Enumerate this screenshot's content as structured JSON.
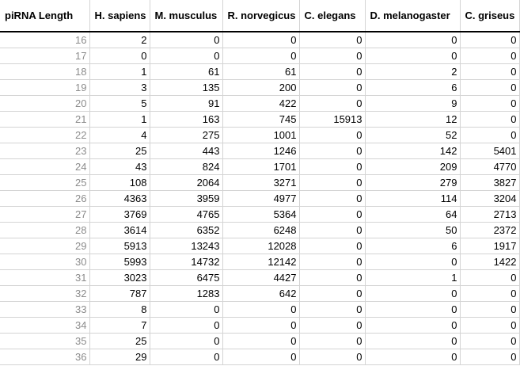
{
  "table": {
    "headers": [
      "piRNA Length",
      "H. sapiens",
      "M. musculus",
      "R. norvegicus",
      "C. elegans",
      "D. melanogaster",
      "C. griseus"
    ],
    "rows": [
      [
        16,
        2,
        0,
        0,
        0,
        0,
        0
      ],
      [
        17,
        0,
        0,
        0,
        0,
        0,
        0
      ],
      [
        18,
        1,
        61,
        61,
        0,
        2,
        0
      ],
      [
        19,
        3,
        135,
        200,
        0,
        6,
        0
      ],
      [
        20,
        5,
        91,
        422,
        0,
        9,
        0
      ],
      [
        21,
        1,
        163,
        745,
        15913,
        12,
        0
      ],
      [
        22,
        4,
        275,
        1001,
        0,
        52,
        0
      ],
      [
        23,
        25,
        443,
        1246,
        0,
        142,
        5401
      ],
      [
        24,
        43,
        824,
        1701,
        0,
        209,
        4770
      ],
      [
        25,
        108,
        2064,
        3271,
        0,
        279,
        3827
      ],
      [
        26,
        4363,
        3959,
        4977,
        0,
        114,
        3204
      ],
      [
        27,
        3769,
        4765,
        5364,
        0,
        64,
        2713
      ],
      [
        28,
        3614,
        6352,
        6248,
        0,
        50,
        2372
      ],
      [
        29,
        5913,
        13243,
        12028,
        0,
        6,
        1917
      ],
      [
        30,
        5993,
        14732,
        12142,
        0,
        0,
        1422
      ],
      [
        31,
        3023,
        6475,
        4427,
        0,
        1,
        0
      ],
      [
        32,
        787,
        1283,
        642,
        0,
        0,
        0
      ],
      [
        33,
        8,
        0,
        0,
        0,
        0,
        0
      ],
      [
        34,
        7,
        0,
        0,
        0,
        0,
        0
      ],
      [
        35,
        25,
        0,
        0,
        0,
        0,
        0
      ],
      [
        36,
        29,
        0,
        0,
        0,
        0,
        0
      ]
    ]
  }
}
